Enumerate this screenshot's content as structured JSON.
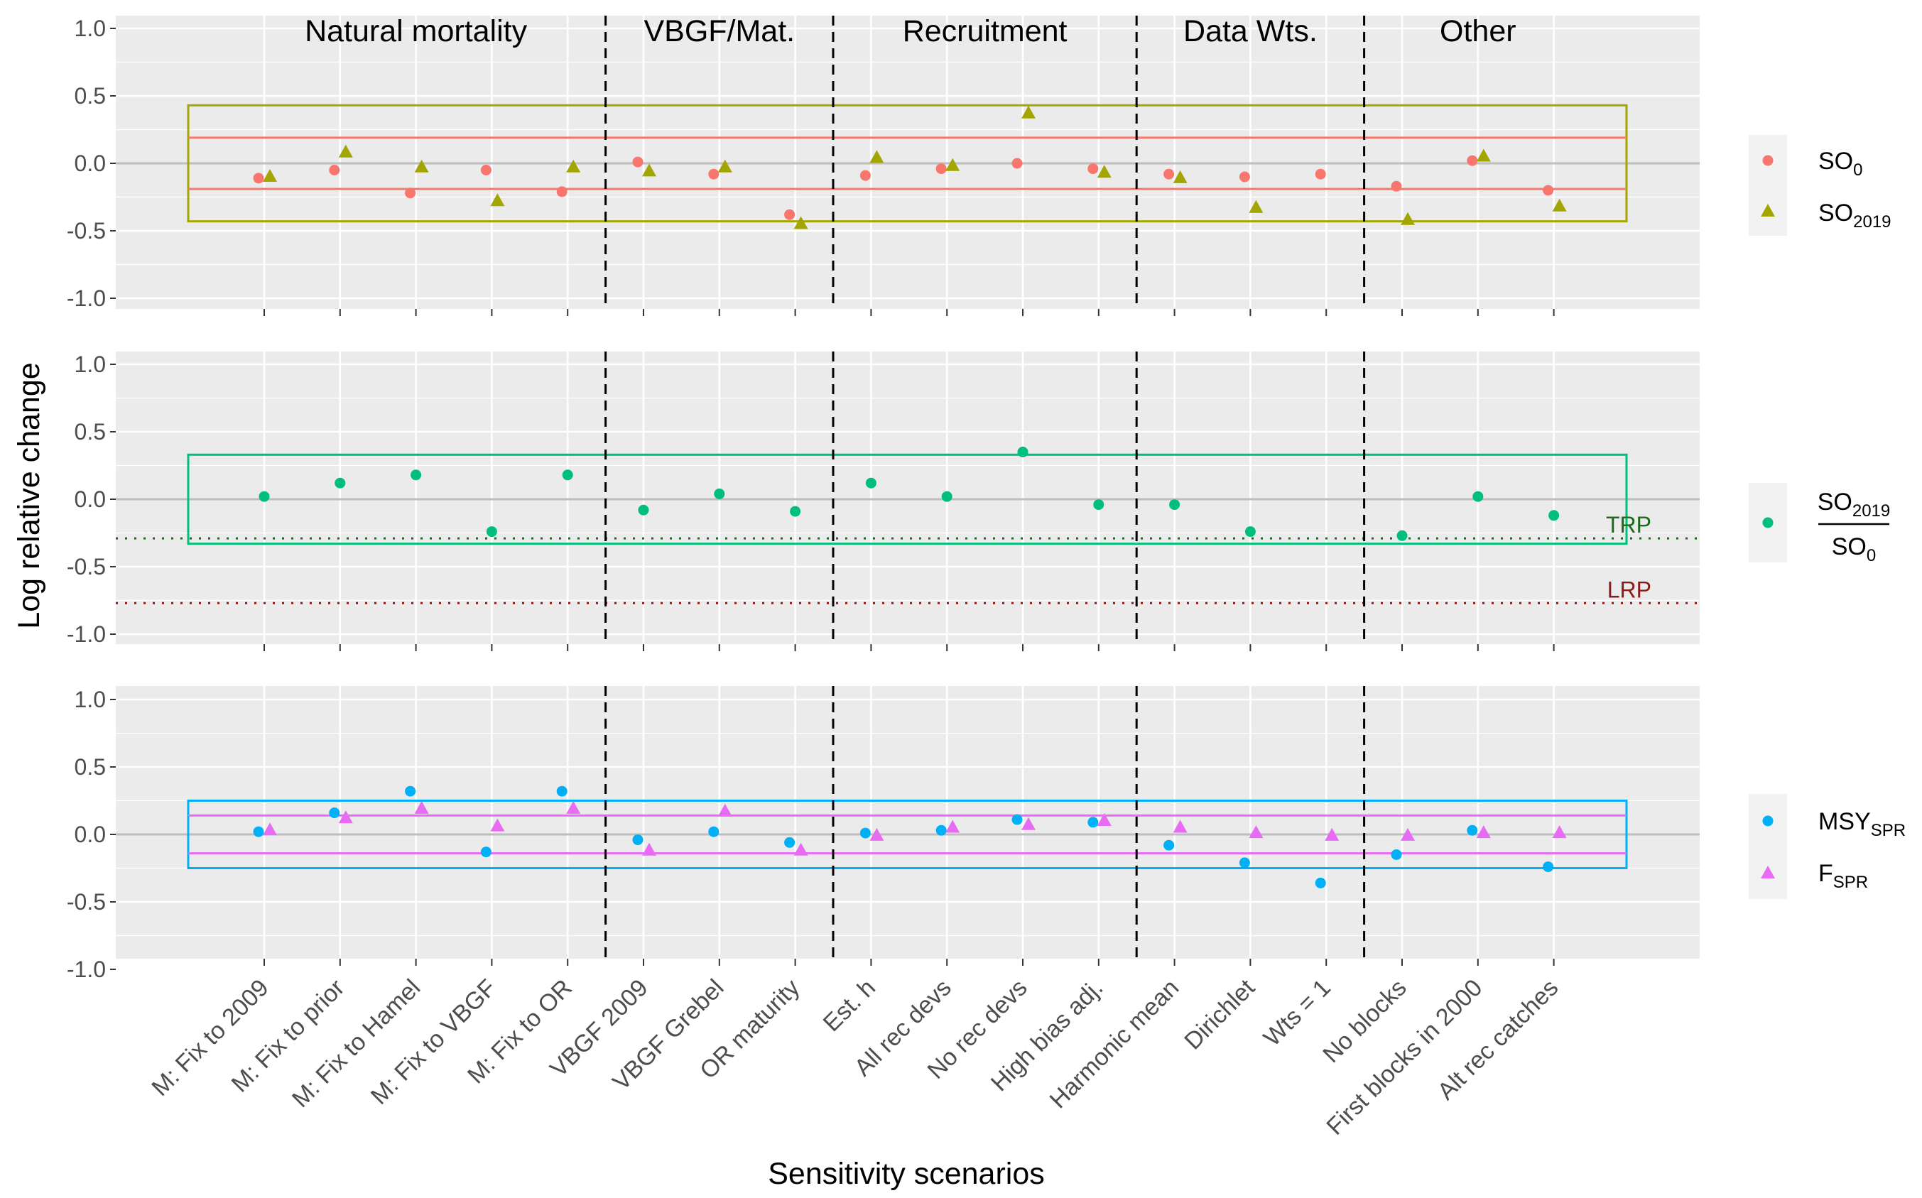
{
  "chart_data": {
    "type": "scatter",
    "xlabel": "Sensitivity scenarios",
    "ylabel": "Log relative change",
    "ylim": [
      -1.1,
      1.1
    ],
    "yticks": [
      -1.0,
      -0.5,
      0.0,
      0.5,
      1.0
    ],
    "ytick_labels": [
      "-1.0",
      "-0.5",
      "0.0",
      "0.5",
      "1.0"
    ],
    "categories": [
      "M: Fix to 2009",
      "M: Fix to prior",
      "M: Fix to Hamel",
      "M: Fix to VBGF",
      "M: Fix to OR",
      "VBGF 2009",
      "VBGF Grebel",
      "OR maturity",
      "Est. h",
      "All rec devs",
      "No rec devs",
      "High bias adj.",
      "Harmonic mean",
      "Dirichlet",
      "Wts = 1",
      "No blocks",
      "First blocks in 2000",
      "Alt rec catches"
    ],
    "groups": [
      {
        "label": "Natural mortality",
        "start": 1,
        "end": 5
      },
      {
        "label": "VBGF/Mat.",
        "start": 6,
        "end": 8
      },
      {
        "label": "Recruitment",
        "start": 9,
        "end": 12
      },
      {
        "label": "Data Wts.",
        "start": 13,
        "end": 15
      },
      {
        "label": "Other",
        "start": 16,
        "end": 18
      }
    ],
    "legend_position": "right",
    "grid": true,
    "panels": [
      {
        "series": [
          {
            "name": "SO",
            "sub": "0",
            "color": "#F8766D",
            "marker": "circle",
            "values": [
              -0.11,
              -0.05,
              -0.22,
              -0.05,
              -0.21,
              0.01,
              -0.08,
              -0.38,
              -0.09,
              -0.04,
              0.0,
              -0.04,
              -0.08,
              -0.1,
              -0.08,
              -0.17,
              0.02,
              -0.2
            ]
          },
          {
            "name": "SO",
            "sub": "2019",
            "color": "#A3A500",
            "marker": "triangle",
            "values": [
              -0.1,
              0.08,
              -0.03,
              -0.28,
              -0.03,
              -0.06,
              -0.03,
              -0.45,
              0.04,
              -0.02,
              0.37,
              -0.07,
              -0.11,
              -0.33,
              null,
              -0.42,
              0.05,
              -0.32
            ]
          }
        ],
        "bands": [
          {
            "color": "#A3A500",
            "range": [
              -0.43,
              0.43
            ]
          },
          {
            "color": "#F8766D",
            "range": [
              -0.19,
              0.19
            ]
          }
        ],
        "reference_lines": []
      },
      {
        "series": [
          {
            "name": "SO",
            "sub": "2019",
            "denominator": "SO",
            "denominator_sub": "0",
            "color": "#00BF7D",
            "marker": "circle",
            "values": [
              0.02,
              0.12,
              0.18,
              -0.24,
              0.18,
              -0.08,
              0.04,
              -0.09,
              0.12,
              0.02,
              0.35,
              -0.04,
              -0.04,
              -0.24,
              null,
              -0.27,
              0.02,
              -0.12
            ]
          }
        ],
        "bands": [
          {
            "color": "#00BF7D",
            "range": [
              -0.33,
              0.33
            ]
          }
        ],
        "reference_lines": [
          {
            "label": "TRP",
            "value": -0.29,
            "color": "#1A6B1A"
          },
          {
            "label": "LRP",
            "value": -0.77,
            "color": "#8B1A1A"
          }
        ]
      },
      {
        "series": [
          {
            "name": "MSY",
            "sub": "SPR",
            "color": "#00B0F6",
            "marker": "circle",
            "values": [
              0.02,
              0.16,
              0.32,
              -0.13,
              0.32,
              -0.04,
              0.02,
              -0.06,
              0.01,
              0.03,
              0.11,
              0.09,
              -0.08,
              -0.21,
              -0.36,
              -0.15,
              0.03,
              -0.24
            ]
          },
          {
            "name": "F",
            "sub": "SPR",
            "color": "#E76BF3",
            "marker": "triangle",
            "values": [
              0.03,
              0.12,
              0.19,
              0.06,
              0.19,
              -0.12,
              0.17,
              -0.12,
              -0.01,
              0.05,
              0.07,
              0.1,
              0.05,
              0.01,
              -0.01,
              -0.01,
              0.01,
              0.01
            ]
          }
        ],
        "bands": [
          {
            "color": "#00B0F6",
            "range": [
              -0.25,
              0.25
            ]
          },
          {
            "color": "#E76BF3",
            "range": [
              -0.14,
              0.14
            ]
          }
        ],
        "reference_lines": []
      }
    ]
  }
}
